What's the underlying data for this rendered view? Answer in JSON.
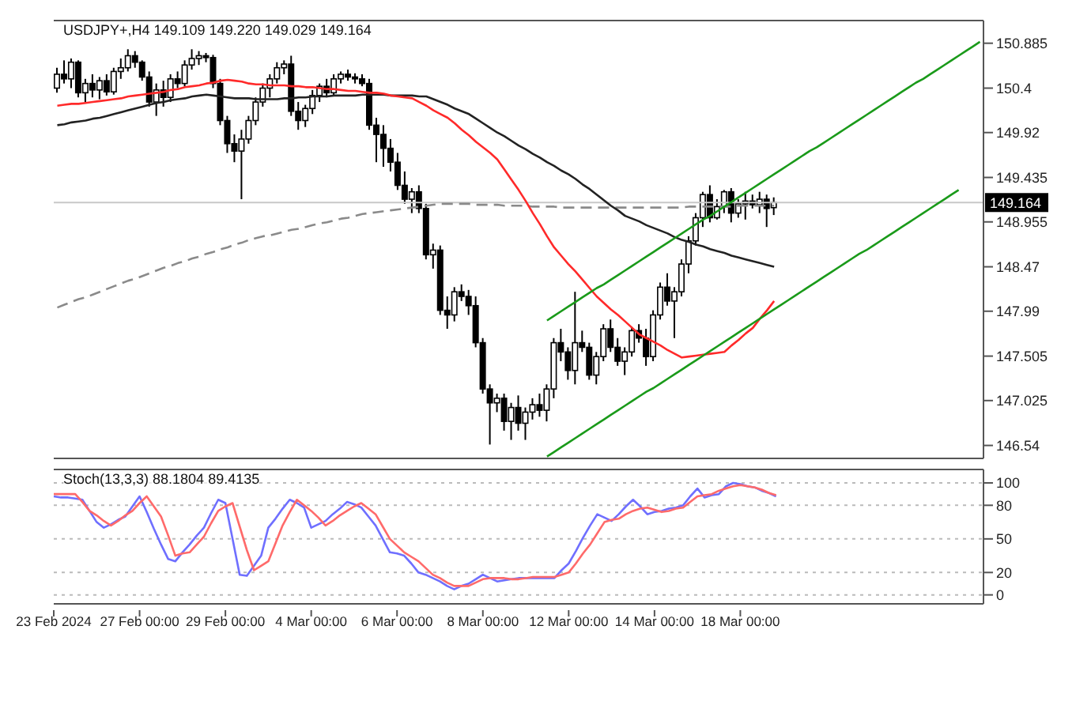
{
  "chart_data": [
    {
      "type": "candlestick",
      "title": "USDJPY+,H4 149.109 149.220 149.029 149.164",
      "tick_labels": "y",
      "ylim": [
        146.4,
        151.13
      ],
      "yticks": [
        146.54,
        147.025,
        147.505,
        147.99,
        148.47,
        148.955,
        149.435,
        149.92,
        150.4,
        150.885
      ],
      "categories": [
        null,
        null,
        null,
        null,
        null,
        null,
        null,
        null,
        null,
        null,
        null,
        null,
        null,
        null,
        null,
        null,
        null,
        null,
        null,
        null,
        null,
        null,
        null,
        null,
        null,
        null,
        null,
        null,
        null,
        null,
        null,
        null,
        null,
        null,
        null,
        null,
        null,
        null,
        null,
        null,
        null,
        null,
        null,
        null,
        null,
        null,
        null,
        null,
        null,
        null,
        null,
        null,
        null,
        null,
        null,
        null,
        null,
        null,
        null,
        null,
        null,
        null,
        null,
        null,
        null,
        null,
        null,
        null,
        null,
        null,
        null,
        null,
        null,
        null,
        null,
        null,
        null,
        null,
        null,
        null,
        null,
        null,
        null,
        null,
        null,
        null,
        null,
        null,
        null,
        null,
        null,
        null,
        null,
        null,
        null,
        null,
        null,
        null,
        null,
        null,
        null,
        null,
        null,
        null,
        null,
        null,
        null,
        null,
        null,
        null,
        null,
        null,
        null,
        null,
        null,
        null,
        null,
        null,
        null,
        null,
        null,
        null,
        null,
        null,
        null,
        null,
        null,
        null,
        null,
        null,
        null
      ],
      "ohlc": [
        [
          150.4,
          150.62,
          150.35,
          150.55
        ],
        [
          150.55,
          150.7,
          150.45,
          150.5
        ],
        [
          150.5,
          150.72,
          150.4,
          150.68
        ],
        [
          150.68,
          150.7,
          150.3,
          150.35
        ],
        [
          150.35,
          150.5,
          150.25,
          150.45
        ],
        [
          150.45,
          150.55,
          150.3,
          150.38
        ],
        [
          150.38,
          150.52,
          150.28,
          150.48
        ],
        [
          150.48,
          150.55,
          150.32,
          150.36
        ],
        [
          150.36,
          150.62,
          150.33,
          150.58
        ],
        [
          150.58,
          150.72,
          150.5,
          150.62
        ],
        [
          150.62,
          150.82,
          150.58,
          150.75
        ],
        [
          150.75,
          150.8,
          150.62,
          150.68
        ],
        [
          150.68,
          150.7,
          150.48,
          150.52
        ],
        [
          150.52,
          150.58,
          150.2,
          150.25
        ],
        [
          150.25,
          150.45,
          150.1,
          150.38
        ],
        [
          150.38,
          150.48,
          150.2,
          150.3
        ],
        [
          150.3,
          150.55,
          150.25,
          150.5
        ],
        [
          150.5,
          150.58,
          150.4,
          150.45
        ],
        [
          150.45,
          150.7,
          150.42,
          150.65
        ],
        [
          150.65,
          150.82,
          150.6,
          150.72
        ],
        [
          150.72,
          150.8,
          150.65,
          150.75
        ],
        [
          150.75,
          150.78,
          150.68,
          150.73
        ],
        [
          150.73,
          150.76,
          150.4,
          150.45
        ],
        [
          150.45,
          150.5,
          150.0,
          150.05
        ],
        [
          150.05,
          150.1,
          149.7,
          149.8
        ],
        [
          149.8,
          149.9,
          149.6,
          149.72
        ],
        [
          149.72,
          149.95,
          149.2,
          149.85
        ],
        [
          149.85,
          150.1,
          149.8,
          150.05
        ],
        [
          150.05,
          150.3,
          150.0,
          150.25
        ],
        [
          150.25,
          150.45,
          150.2,
          150.4
        ],
        [
          150.4,
          150.55,
          150.3,
          150.5
        ],
        [
          150.5,
          150.68,
          150.45,
          150.62
        ],
        [
          150.62,
          150.7,
          150.55,
          150.66
        ],
        [
          150.66,
          150.75,
          150.1,
          150.15
        ],
        [
          150.15,
          150.25,
          149.95,
          150.05
        ],
        [
          150.05,
          150.22,
          149.98,
          150.18
        ],
        [
          150.18,
          150.38,
          150.12,
          150.32
        ],
        [
          150.32,
          150.45,
          150.25,
          150.42
        ],
        [
          150.42,
          150.5,
          150.3,
          150.35
        ],
        [
          150.35,
          150.55,
          150.32,
          150.5
        ],
        [
          150.5,
          150.58,
          150.45,
          150.55
        ],
        [
          150.55,
          150.6,
          150.48,
          150.52
        ],
        [
          150.52,
          150.56,
          150.45,
          150.5
        ],
        [
          150.5,
          150.55,
          150.42,
          150.45
        ],
        [
          150.45,
          150.5,
          149.95,
          150.0
        ],
        [
          150.0,
          150.08,
          149.6,
          149.9
        ],
        [
          149.9,
          150.0,
          149.55,
          149.75
        ],
        [
          149.75,
          149.85,
          149.5,
          149.6
        ],
        [
          149.6,
          149.7,
          149.3,
          149.35
        ],
        [
          149.35,
          149.5,
          149.15,
          149.2
        ],
        [
          149.2,
          149.32,
          149.05,
          149.28
        ],
        [
          149.28,
          149.35,
          149.05,
          149.1
        ],
        [
          149.1,
          149.15,
          148.55,
          148.6
        ],
        [
          148.6,
          148.72,
          148.45,
          148.65
        ],
        [
          148.65,
          148.7,
          147.95,
          148.0
        ],
        [
          148.0,
          148.15,
          147.8,
          147.95
        ],
        [
          147.95,
          148.25,
          147.88,
          148.2
        ],
        [
          148.2,
          148.28,
          148.1,
          148.15
        ],
        [
          148.15,
          148.22,
          147.95,
          148.05
        ],
        [
          148.05,
          148.15,
          147.6,
          147.65
        ],
        [
          147.65,
          147.7,
          147.1,
          147.15
        ],
        [
          147.15,
          147.2,
          146.55,
          147.0
        ],
        [
          147.0,
          147.1,
          146.9,
          147.05
        ],
        [
          147.05,
          147.1,
          146.7,
          146.8
        ],
        [
          146.8,
          147.0,
          146.6,
          146.95
        ],
        [
          146.95,
          147.08,
          146.7,
          146.78
        ],
        [
          146.78,
          146.95,
          146.6,
          146.9
        ],
        [
          146.9,
          147.05,
          146.82,
          146.98
        ],
        [
          146.98,
          147.1,
          146.85,
          146.92
        ],
        [
          146.92,
          147.2,
          146.8,
          147.15
        ],
        [
          147.15,
          147.7,
          147.05,
          147.65
        ],
        [
          147.65,
          147.8,
          147.45,
          147.55
        ],
        [
          147.55,
          147.6,
          147.25,
          147.35
        ],
        [
          147.35,
          148.2,
          147.2,
          147.65
        ],
        [
          147.65,
          147.78,
          147.55,
          147.6
        ],
        [
          147.6,
          147.65,
          147.25,
          147.3
        ],
        [
          147.3,
          147.55,
          147.2,
          147.5
        ],
        [
          147.5,
          147.85,
          147.45,
          147.8
        ],
        [
          147.8,
          147.9,
          147.55,
          147.6
        ],
        [
          147.6,
          147.7,
          147.4,
          147.45
        ],
        [
          147.45,
          147.6,
          147.3,
          147.55
        ],
        [
          147.55,
          147.82,
          147.5,
          147.78
        ],
        [
          147.78,
          147.85,
          147.65,
          147.7
        ],
        [
          147.7,
          147.8,
          147.4,
          147.5
        ],
        [
          147.5,
          148.0,
          147.45,
          147.95
        ],
        [
          147.95,
          148.3,
          147.9,
          148.25
        ],
        [
          148.25,
          148.4,
          148.05,
          148.1
        ],
        [
          148.1,
          148.25,
          147.7,
          148.2
        ],
        [
          148.2,
          148.55,
          148.15,
          148.5
        ],
        [
          148.5,
          148.8,
          148.4,
          148.75
        ],
        [
          148.75,
          149.05,
          148.7,
          149.0
        ],
        [
          149.0,
          149.28,
          148.9,
          149.25
        ],
        [
          149.25,
          149.35,
          148.95,
          149.0
        ],
        [
          149.0,
          149.2,
          148.98,
          149.12
        ],
        [
          149.12,
          149.3,
          149.05,
          149.28
        ],
        [
          149.28,
          149.32,
          148.95,
          149.05
        ],
        [
          149.05,
          149.2,
          149.0,
          149.15
        ],
        [
          149.15,
          149.28,
          148.98,
          149.18
        ],
        [
          149.18,
          149.25,
          149.1,
          149.14
        ],
        [
          149.14,
          149.28,
          149.05,
          149.2
        ],
        [
          149.2,
          149.25,
          148.9,
          149.1
        ],
        [
          149.109,
          149.22,
          149.029,
          149.164
        ],
        null,
        null,
        null,
        null,
        null,
        null,
        null,
        null,
        null,
        null,
        null,
        null,
        null,
        null,
        null,
        null,
        null,
        null,
        null,
        null,
        null,
        null,
        null,
        null,
        null,
        null,
        null,
        null,
        null
      ],
      "series": [
        {
          "type": "line",
          "color": "#8a8a8a",
          "line_style": "dashed",
          "values": [
            148.03,
            148.06,
            148.09,
            148.12,
            148.14,
            148.17,
            148.2,
            148.23,
            148.26,
            148.29,
            148.32,
            148.34,
            148.37,
            148.4,
            148.43,
            148.46,
            148.48,
            148.51,
            148.53,
            148.56,
            148.58,
            148.61,
            148.63,
            148.66,
            148.68,
            148.71,
            148.73,
            148.76,
            148.78,
            148.8,
            148.81,
            148.83,
            148.85,
            148.87,
            148.88,
            148.9,
            148.92,
            148.94,
            148.95,
            148.97,
            148.99,
            149.0,
            149.02,
            149.04,
            149.05,
            149.06,
            149.07,
            149.08,
            149.09,
            149.1,
            149.11,
            149.12,
            149.13,
            149.14,
            149.15,
            149.15,
            149.15,
            149.15,
            149.15,
            149.14,
            149.14,
            149.14,
            149.14,
            149.13,
            149.13,
            149.13,
            149.13,
            149.12,
            149.12,
            149.12,
            149.12,
            149.11,
            149.11,
            149.11,
            149.11,
            149.11,
            149.11,
            149.11,
            149.11,
            149.11,
            149.11,
            149.11,
            149.11,
            149.11,
            149.11,
            149.11,
            149.11,
            149.11,
            149.11,
            149.12,
            149.12,
            149.12,
            149.12,
            149.12,
            149.12,
            149.12,
            149.13,
            149.13,
            149.13,
            149.13,
            149.13,
            149.13,
            null,
            null,
            null,
            null,
            null,
            null,
            null,
            null,
            null,
            null,
            null,
            null,
            null,
            null,
            null,
            null,
            null,
            null,
            null,
            null,
            null,
            null,
            null,
            null,
            null,
            null,
            null,
            null,
            null
          ]
        },
        {
          "type": "line",
          "color": "#222222",
          "values": [
            150.0,
            150.01,
            150.03,
            150.04,
            150.05,
            150.07,
            150.08,
            150.1,
            150.12,
            150.14,
            150.16,
            150.18,
            150.2,
            150.22,
            150.24,
            150.25,
            150.27,
            150.28,
            150.29,
            150.31,
            150.32,
            150.33,
            150.32,
            150.31,
            150.3,
            150.29,
            150.29,
            150.29,
            150.28,
            150.28,
            150.28,
            150.28,
            150.29,
            150.29,
            150.3,
            150.3,
            150.31,
            150.31,
            150.31,
            150.32,
            150.32,
            150.32,
            150.32,
            150.33,
            150.33,
            150.33,
            150.33,
            150.32,
            150.32,
            150.32,
            150.32,
            150.31,
            150.31,
            150.28,
            150.25,
            150.22,
            150.18,
            150.15,
            150.12,
            150.07,
            150.02,
            149.97,
            149.92,
            149.88,
            149.83,
            149.78,
            149.74,
            149.69,
            149.65,
            149.6,
            149.56,
            149.51,
            149.47,
            149.42,
            149.36,
            149.31,
            149.25,
            149.19,
            149.13,
            149.08,
            149.02,
            148.99,
            148.96,
            148.92,
            148.89,
            148.86,
            148.83,
            148.79,
            148.76,
            148.74,
            148.71,
            148.69,
            148.66,
            148.64,
            148.62,
            148.59,
            148.57,
            148.55,
            148.53,
            148.51,
            148.49,
            148.47,
            null,
            null,
            null,
            null,
            null,
            null,
            null,
            null,
            null,
            null,
            null,
            null,
            null,
            null,
            null,
            null,
            null,
            null,
            null,
            null,
            null,
            null,
            null,
            null,
            null,
            null,
            null,
            null,
            null
          ]
        },
        {
          "type": "line",
          "color": "#ff2a2a",
          "values": [
            150.21,
            150.22,
            150.23,
            150.23,
            150.24,
            150.25,
            150.26,
            150.27,
            150.28,
            150.29,
            150.31,
            150.32,
            150.33,
            150.34,
            150.35,
            150.36,
            150.38,
            150.39,
            150.41,
            150.42,
            150.43,
            150.45,
            150.46,
            150.48,
            150.49,
            150.48,
            150.47,
            150.45,
            150.44,
            150.44,
            150.43,
            150.43,
            150.43,
            150.42,
            150.42,
            150.41,
            150.41,
            150.4,
            150.39,
            150.39,
            150.38,
            150.37,
            150.37,
            150.36,
            150.35,
            150.35,
            150.34,
            150.32,
            150.31,
            150.3,
            150.29,
            150.25,
            150.21,
            150.16,
            150.12,
            150.08,
            150.02,
            149.95,
            149.89,
            149.82,
            149.76,
            149.7,
            149.63,
            149.52,
            149.41,
            149.3,
            149.18,
            149.05,
            148.93,
            148.8,
            148.68,
            148.59,
            148.5,
            148.42,
            148.33,
            148.24,
            148.15,
            148.08,
            148.01,
            147.95,
            147.88,
            147.81,
            147.74,
            147.7,
            147.66,
            147.62,
            147.57,
            147.53,
            147.49,
            147.5,
            147.51,
            147.52,
            147.53,
            147.54,
            147.55,
            147.62,
            147.68,
            147.75,
            147.81,
            147.91,
            148.0,
            148.1,
            null,
            null,
            null,
            null,
            null,
            null,
            null,
            null,
            null,
            null,
            null,
            null,
            null,
            null,
            null,
            null,
            null,
            null,
            null,
            null,
            null,
            null,
            null,
            null,
            null,
            null,
            null,
            null,
            null
          ]
        },
        {
          "type": "line",
          "color": "#1a9a1a",
          "values": [
            null,
            null,
            null,
            null,
            null,
            null,
            null,
            null,
            null,
            null,
            null,
            null,
            null,
            null,
            null,
            null,
            null,
            null,
            null,
            null,
            null,
            null,
            null,
            null,
            null,
            null,
            null,
            null,
            null,
            null,
            null,
            null,
            null,
            null,
            null,
            null,
            null,
            null,
            null,
            null,
            null,
            null,
            null,
            null,
            null,
            null,
            null,
            null,
            null,
            null,
            null,
            null,
            null,
            null,
            null,
            null,
            null,
            null,
            null,
            null,
            null,
            null,
            null,
            null,
            null,
            null,
            null,
            null,
            null,
            147.89,
            147.94,
            147.99,
            148.04,
            148.09,
            148.14,
            148.19,
            148.24,
            148.28,
            148.33,
            148.38,
            148.43,
            148.48,
            148.53,
            148.58,
            148.63,
            148.68,
            148.73,
            148.78,
            148.83,
            148.88,
            148.93,
            148.98,
            149.02,
            149.07,
            149.12,
            149.17,
            149.22,
            149.27,
            149.32,
            149.37,
            149.42,
            149.47,
            149.52,
            149.57,
            149.62,
            149.67,
            149.72,
            149.76,
            149.81,
            149.86,
            149.91,
            149.96,
            150.01,
            150.06,
            150.11,
            150.16,
            150.21,
            150.26,
            150.31,
            150.36,
            150.41,
            150.46,
            150.5,
            150.55,
            150.6,
            150.65,
            150.7,
            150.75,
            150.8,
            150.85,
            150.9
          ]
        },
        {
          "type": "line",
          "color": "#1a9a1a",
          "values": [
            null,
            null,
            null,
            null,
            null,
            null,
            null,
            null,
            null,
            null,
            null,
            null,
            null,
            null,
            null,
            null,
            null,
            null,
            null,
            null,
            null,
            null,
            null,
            null,
            null,
            null,
            null,
            null,
            null,
            null,
            null,
            null,
            null,
            null,
            null,
            null,
            null,
            null,
            null,
            null,
            null,
            null,
            null,
            null,
            null,
            null,
            null,
            null,
            null,
            null,
            null,
            null,
            null,
            null,
            null,
            null,
            null,
            null,
            null,
            null,
            null,
            null,
            null,
            null,
            null,
            null,
            null,
            null,
            null,
            146.42,
            146.47,
            146.52,
            146.57,
            146.62,
            146.67,
            146.72,
            146.77,
            146.82,
            146.87,
            146.92,
            146.97,
            147.02,
            147.07,
            147.12,
            147.16,
            147.21,
            147.26,
            147.31,
            147.36,
            147.41,
            147.46,
            147.51,
            147.56,
            147.61,
            147.66,
            147.71,
            147.76,
            147.81,
            147.86,
            147.91,
            147.96,
            148.01,
            148.06,
            148.11,
            148.16,
            148.21,
            148.26,
            148.31,
            148.36,
            148.41,
            148.46,
            148.51,
            148.56,
            148.61,
            148.65,
            148.7,
            148.75,
            148.8,
            148.85,
            148.9,
            148.95,
            149.0,
            149.05,
            149.1,
            149.15,
            149.2,
            149.25,
            149.3,
            null,
            null,
            null
          ]
        }
      ],
      "ref_lines": [
        {
          "axis": "y",
          "value": 149.164,
          "label": "149.164",
          "color": "#c8c8c8"
        }
      ]
    },
    {
      "type": "line",
      "title": "Stoch(13,3,3) 88.1804 89.4135",
      "grid": "y",
      "ylim": [
        -8,
        112
      ],
      "yticks": [
        0,
        20,
        50,
        80,
        100
      ],
      "categories": [
        "23 Feb 2024",
        null,
        null,
        null,
        null,
        null,
        null,
        null,
        null,
        null,
        null,
        null,
        "27 Feb 00:00",
        null,
        null,
        null,
        null,
        null,
        null,
        null,
        null,
        null,
        null,
        null,
        "29 Feb 00:00",
        null,
        null,
        null,
        null,
        null,
        null,
        null,
        null,
        null,
        null,
        null,
        "4 Mar 00:00",
        null,
        null,
        null,
        null,
        null,
        null,
        null,
        null,
        null,
        null,
        null,
        "6 Mar 00:00",
        null,
        null,
        null,
        null,
        null,
        null,
        null,
        null,
        null,
        null,
        null,
        "8 Mar 00:00",
        null,
        null,
        null,
        null,
        null,
        null,
        null,
        null,
        null,
        null,
        null,
        "12 Mar 00:00",
        null,
        null,
        null,
        null,
        null,
        null,
        null,
        null,
        null,
        null,
        null,
        "14 Mar 00:00",
        null,
        null,
        null,
        null,
        null,
        null,
        null,
        null,
        null,
        null,
        null,
        "18 Mar 00:00",
        null,
        null,
        null,
        null,
        null,
        null,
        null,
        null,
        null,
        null,
        null,
        null,
        null,
        null,
        null,
        null,
        null,
        null,
        null,
        null,
        null,
        null,
        null,
        null,
        null,
        null,
        null,
        null,
        null,
        null,
        null,
        null,
        null,
        null
      ],
      "series": [
        {
          "color": "#6f6fff",
          "values": [
            88,
            87,
            87,
            86,
            85,
            75,
            65,
            60,
            63,
            67,
            70,
            79,
            88,
            74,
            59,
            45,
            32,
            30,
            38,
            45,
            53,
            60,
            73,
            85,
            82,
            50,
            18,
            17,
            26,
            35,
            60,
            68,
            77,
            85,
            82,
            78,
            60,
            63,
            66,
            72,
            77,
            83,
            81,
            78,
            70,
            62,
            50,
            38,
            37,
            35,
            28,
            20,
            18,
            15,
            12,
            8,
            5,
            8,
            10,
            14,
            18,
            15,
            12,
            13,
            14,
            15,
            15,
            15,
            15,
            15,
            15,
            22,
            28,
            39,
            51,
            62,
            72,
            69,
            66,
            72,
            79,
            85,
            79,
            72,
            74,
            75,
            77,
            78,
            80,
            88,
            95,
            87,
            89,
            90,
            97,
            100,
            99,
            97,
            96,
            93,
            91,
            88,
            null,
            null,
            null,
            null,
            null,
            null,
            null,
            null,
            null,
            null,
            null,
            null,
            null,
            null,
            null,
            null,
            null,
            null,
            null,
            null,
            null,
            null,
            null,
            null,
            null,
            null,
            null,
            null,
            null
          ]
        },
        {
          "color": "#ff6a6a",
          "values": [
            90,
            90,
            90,
            90,
            83,
            75,
            71,
            66,
            62,
            66,
            71,
            75,
            82,
            88,
            79,
            70,
            53,
            35,
            37,
            38,
            45,
            52,
            64,
            75,
            79,
            82,
            61,
            40,
            22,
            26,
            30,
            46,
            62,
            74,
            85,
            80,
            75,
            69,
            62,
            66,
            71,
            75,
            79,
            82,
            77,
            72,
            61,
            50,
            44,
            38,
            34,
            30,
            24,
            18,
            15,
            11,
            8,
            8,
            8,
            11,
            14,
            15,
            15,
            15,
            14,
            14,
            15,
            16,
            16,
            16,
            16,
            18,
            20,
            28,
            37,
            45,
            55,
            65,
            67,
            68,
            72,
            75,
            77,
            78,
            76,
            74,
            75,
            77,
            78,
            83,
            88,
            89,
            90,
            93,
            95,
            97,
            98,
            97,
            96,
            94,
            91,
            89,
            null,
            null,
            null,
            null,
            null,
            null,
            null,
            null,
            null,
            null,
            null,
            null,
            null,
            null,
            null,
            null,
            null,
            null,
            null,
            null,
            null,
            null,
            null,
            null,
            null,
            null,
            null,
            null,
            null
          ]
        }
      ]
    }
  ]
}
